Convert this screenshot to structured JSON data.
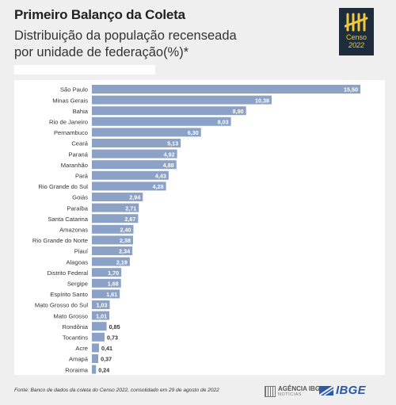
{
  "header": {
    "title": "Primeiro Balanço da Coleta",
    "subtitle_line1": "Distribuição da população recenseada",
    "subtitle_line2": "por unidade de federação(%)*"
  },
  "logo": {
    "line1": "Censo",
    "line2": "2022"
  },
  "chart_data": {
    "type": "bar",
    "orientation": "horizontal",
    "categories": [
      "São Paulo",
      "Minas Gerais",
      "Bahia",
      "Rio de Janeiro",
      "Pernambuco",
      "Ceará",
      "Paraná",
      "Maranhão",
      "Pará",
      "Rio Grande do Sul",
      "Goiás",
      "Paraíba",
      "Santa Catarina",
      "Amazonas",
      "Rio Grande do Norte",
      "Piauí",
      "Alagoas",
      "Distrito Federal",
      "Sergipe",
      "Espírito Santo",
      "Mato Grosso do Sul",
      "Mato Grosso",
      "Rondônia",
      "Tocantins",
      "Acre",
      "Amapá",
      "Roraima"
    ],
    "values": [
      15.5,
      10.38,
      8.9,
      8.03,
      6.3,
      5.13,
      4.92,
      4.88,
      4.43,
      4.28,
      2.94,
      2.71,
      2.67,
      2.4,
      2.38,
      2.34,
      2.19,
      1.7,
      1.68,
      1.61,
      1.03,
      1.01,
      0.85,
      0.73,
      0.41,
      0.37,
      0.24
    ],
    "value_labels": [
      "15,50",
      "10,38",
      "8,90",
      "8,03",
      "6,30",
      "5,13",
      "4,92",
      "4,88",
      "4,43",
      "4,28",
      "2,94",
      "2,71",
      "2,67",
      "2,40",
      "2,38",
      "2,34",
      "2,19",
      "1,70",
      "1,68",
      "1,61",
      "1,03",
      "1,01",
      "0,85",
      "0,73",
      "0,41",
      "0,37",
      "0,24"
    ],
    "xlim": [
      0,
      15.5
    ],
    "bar_color": "#8ba2c6",
    "grid": false,
    "legend": "none"
  },
  "footer": {
    "source": "Fonte: Banco de dados da coleta do Censo 2022, consolidado em 29 de agosto de 2022",
    "agency_name": "AGÊNCIA IBGE",
    "agency_sub": "NOTÍCIAS",
    "ibge": "IBGE"
  },
  "colors": {
    "background": "#efefef",
    "panel": "#ffffff",
    "bar": "#8ba2c6",
    "logo_bg": "#1e2d3b",
    "logo_accent": "#f0c940",
    "ibge_blue": "#2c5aa6"
  }
}
